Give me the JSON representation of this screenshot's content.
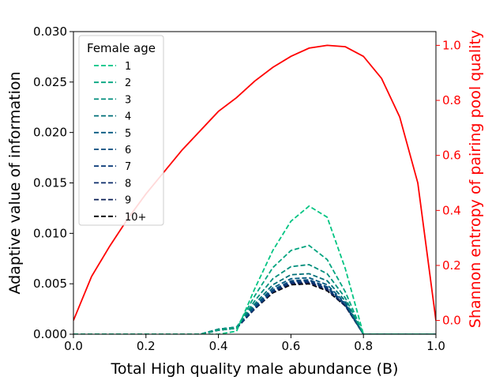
{
  "chart_data": {
    "type": "line",
    "xlabel": "Total High quality male abundance (B)",
    "ylabel_left": "Adaptive value of information",
    "ylabel_right": "Shannon entropy of pairing pool quality",
    "right_axis_color": "#ff0000",
    "xlim": [
      0,
      1
    ],
    "ylim_left": [
      0,
      0.03
    ],
    "ylim_right": [
      -0.05,
      1.05
    ],
    "x_ticks": [
      "0.0",
      "0.2",
      "0.4",
      "0.6",
      "0.8",
      "1.0"
    ],
    "y_left_ticks": [
      "0.000",
      "0.005",
      "0.010",
      "0.015",
      "0.020",
      "0.025",
      "0.030"
    ],
    "y_right_ticks": [
      "0.0",
      "0.2",
      "0.4",
      "0.6",
      "0.8",
      "1.0"
    ],
    "legend": {
      "title": "Female age",
      "location": "upper-left"
    },
    "x": [
      0,
      0.05,
      0.1,
      0.15,
      0.2,
      0.25,
      0.3,
      0.35,
      0.4,
      0.45,
      0.5,
      0.55,
      0.6,
      0.65,
      0.7,
      0.75,
      0.8,
      0.85,
      0.9,
      0.95,
      1.0
    ],
    "series": [
      {
        "name": "1",
        "axis": "left",
        "color": "#00c482",
        "dash": true,
        "values": [
          0,
          0,
          0,
          0,
          0,
          0,
          0,
          0,
          0,
          0.0003,
          0.0045,
          0.0083,
          0.0112,
          0.0127,
          0.0116,
          0.0065,
          0,
          0,
          0,
          0,
          0
        ]
      },
      {
        "name": "2",
        "axis": "left",
        "color": "#00a47f",
        "dash": true,
        "values": [
          0,
          0,
          0,
          0,
          0,
          0,
          0,
          0,
          0.0004,
          0.0006,
          0.0038,
          0.0066,
          0.0083,
          0.0088,
          0.0074,
          0.0042,
          0,
          0,
          0,
          0,
          0
        ]
      },
      {
        "name": "3",
        "axis": "left",
        "color": "#008e7c",
        "dash": true,
        "values": [
          0,
          0,
          0,
          0,
          0,
          0,
          0,
          0,
          0.0005,
          0.0007,
          0.0033,
          0.0055,
          0.0067,
          0.0069,
          0.006,
          0.0036,
          0,
          0,
          0,
          0,
          0
        ]
      },
      {
        "name": "4",
        "axis": "left",
        "color": "#006f78",
        "dash": true,
        "values": [
          0,
          0,
          0,
          0,
          0,
          0,
          0,
          0,
          0.0005,
          0.0007,
          0.003,
          0.0049,
          0.0059,
          0.006,
          0.0053,
          0.0033,
          0,
          0,
          0,
          0,
          0
        ]
      },
      {
        "name": "5",
        "axis": "left",
        "color": "#005880",
        "dash": true,
        "values": [
          0,
          0,
          0,
          0,
          0,
          0,
          0,
          0,
          0.0005,
          0.0007,
          0.0028,
          0.0046,
          0.0055,
          0.0056,
          0.0049,
          0.0031,
          0,
          0,
          0,
          0,
          0
        ]
      },
      {
        "name": "6",
        "axis": "left",
        "color": "#0a4a7c",
        "dash": true,
        "values": [
          0,
          0,
          0,
          0,
          0,
          0,
          0,
          0,
          0.0005,
          0.0007,
          0.0027,
          0.0044,
          0.0053,
          0.0054,
          0.0047,
          0.003,
          0,
          0,
          0,
          0,
          0
        ]
      },
      {
        "name": "7",
        "axis": "left",
        "color": "#0a3a78",
        "dash": true,
        "values": [
          0,
          0,
          0,
          0,
          0,
          0,
          0,
          0,
          0.0004,
          0.0006,
          0.0026,
          0.0043,
          0.0052,
          0.0053,
          0.0046,
          0.0029,
          0,
          0,
          0,
          0,
          0
        ]
      },
      {
        "name": "8",
        "axis": "left",
        "color": "#0b2c6a",
        "dash": true,
        "values": [
          0,
          0,
          0,
          0,
          0,
          0,
          0,
          0,
          0.0004,
          0.0006,
          0.0026,
          0.0042,
          0.0051,
          0.0052,
          0.0045,
          0.0029,
          0,
          0,
          0,
          0,
          0
        ]
      },
      {
        "name": "9",
        "axis": "left",
        "color": "#0a1f55",
        "dash": true,
        "values": [
          0,
          0,
          0,
          0,
          0,
          0,
          0,
          0,
          0.0004,
          0.0006,
          0.0025,
          0.0042,
          0.005,
          0.0051,
          0.0044,
          0.0028,
          0,
          0,
          0,
          0,
          0
        ]
      },
      {
        "name": "10+",
        "axis": "left",
        "color": "#000000",
        "dash": true,
        "values": [
          0,
          0,
          0,
          0,
          0,
          0,
          0,
          0,
          0.0004,
          0.0006,
          0.0025,
          0.0041,
          0.0049,
          0.005,
          0.0043,
          0.0028,
          0,
          0,
          0,
          0,
          0
        ]
      },
      {
        "name": "",
        "axis": "right",
        "color": "#ff0000",
        "dash": false,
        "values": [
          0.0,
          0.16,
          0.27,
          0.37,
          0.46,
          0.54,
          0.62,
          0.69,
          0.76,
          0.81,
          0.87,
          0.92,
          0.96,
          0.99,
          1.0,
          0.995,
          0.96,
          0.88,
          0.74,
          0.5,
          0.0
        ]
      }
    ]
  }
}
